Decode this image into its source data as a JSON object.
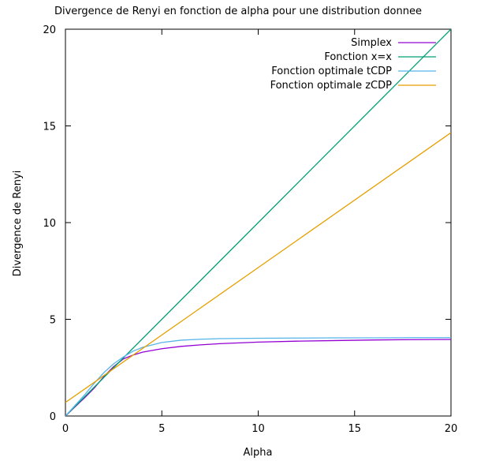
{
  "chart_data": {
    "type": "line",
    "title": "Divergence de Renyi en fonction de alpha pour une distribution donnee",
    "xlabel": "Alpha",
    "ylabel": "Divergence de Renyi",
    "xlim": [
      0,
      20
    ],
    "ylim": [
      0,
      20
    ],
    "xticks": [
      0,
      5,
      10,
      15,
      20
    ],
    "yticks": [
      0,
      5,
      10,
      15,
      20
    ],
    "grid": false,
    "legend_position": "top-right",
    "series": [
      {
        "name": "Simplex",
        "color": "#9400d3",
        "x": [
          0,
          1,
          1.5,
          2,
          2.5,
          3,
          3.5,
          4,
          5,
          6,
          7,
          8,
          10,
          12,
          14,
          16,
          18,
          20
        ],
        "y": [
          0,
          0.95,
          1.45,
          2.05,
          2.55,
          2.95,
          3.15,
          3.3,
          3.48,
          3.6,
          3.68,
          3.74,
          3.82,
          3.87,
          3.9,
          3.93,
          3.95,
          3.96
        ]
      },
      {
        "name": "Fonction x=x",
        "color": "#009e73",
        "x": [
          0,
          20
        ],
        "y": [
          0,
          20
        ]
      },
      {
        "name": "Fonction optimale tCDP",
        "color": "#56b4e9",
        "x": [
          0,
          1,
          1.5,
          2,
          2.5,
          3,
          3.5,
          4,
          5,
          6,
          7,
          8,
          10,
          12,
          14,
          16,
          18,
          20
        ],
        "y": [
          0,
          1.1,
          1.7,
          2.25,
          2.7,
          3.05,
          3.35,
          3.55,
          3.8,
          3.92,
          3.97,
          4.0,
          4.02,
          4.03,
          4.04,
          4.04,
          4.05,
          4.05
        ]
      },
      {
        "name": "Fonction optimale zCDP",
        "color": "#e69f00",
        "x": [
          0,
          20
        ],
        "y": [
          0.7,
          14.65
        ]
      }
    ]
  }
}
